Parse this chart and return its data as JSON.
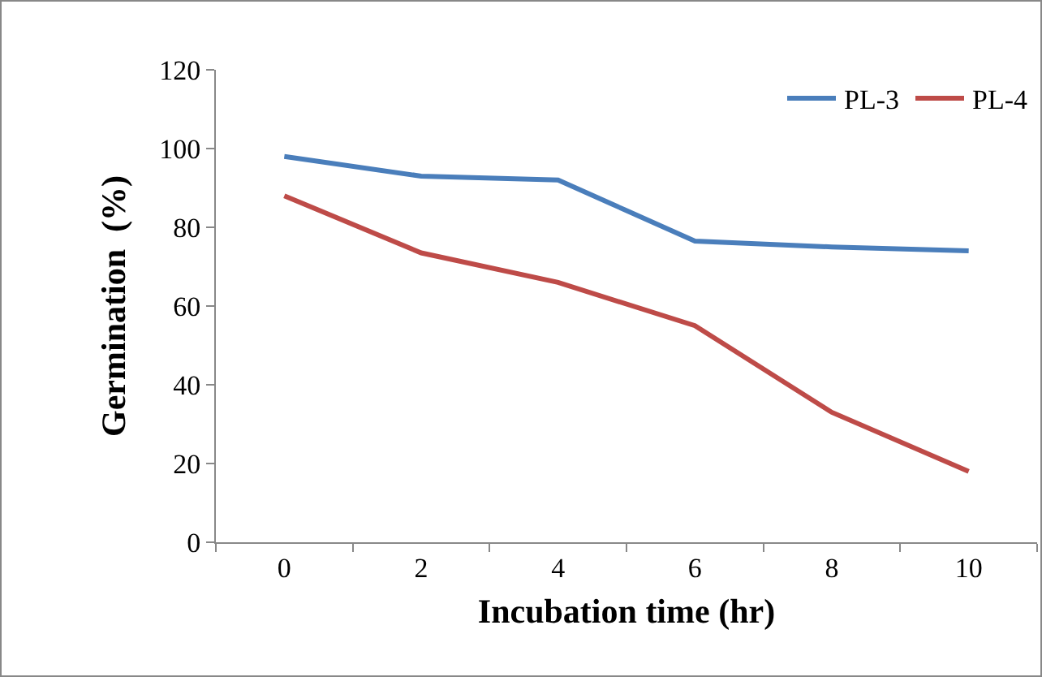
{
  "chart_data": {
    "type": "line",
    "xlabel": "Incubation time (hr)",
    "ylabel": "Germination  (%)",
    "categories": [
      "0",
      "2",
      "4",
      "6",
      "8",
      "10"
    ],
    "series": [
      {
        "name": "PL-3",
        "color": "#4a7ebb",
        "values": [
          98,
          93,
          92,
          76.5,
          75,
          74
        ]
      },
      {
        "name": "PL-4",
        "color": "#be4b48",
        "values": [
          88,
          73.5,
          66,
          55,
          33,
          18
        ]
      }
    ],
    "ylim": [
      0,
      120
    ],
    "yticks": [
      0,
      20,
      40,
      60,
      80,
      100,
      120
    ],
    "grid": false,
    "legend": "top right",
    "marker": "none",
    "line_style": "solid"
  }
}
